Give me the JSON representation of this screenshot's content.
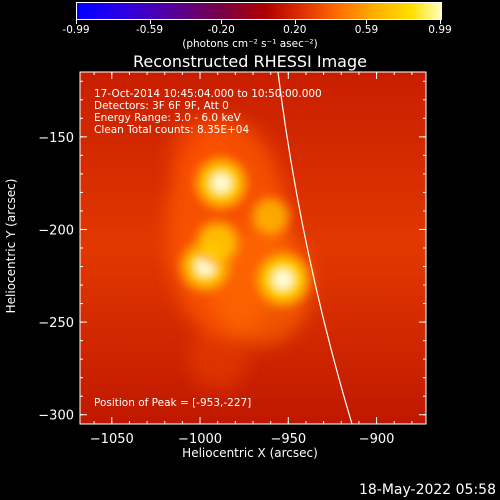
{
  "colorbar": {
    "ticks": [
      "-0.99",
      "-0.59",
      "-0.20",
      "0.20",
      "0.59",
      "0.99"
    ],
    "units": "(photons cm⁻² s⁻¹ asec⁻²)"
  },
  "chart_data": {
    "type": "heatmap",
    "title": "Reconstructed RHESSI Image",
    "xlabel": "Heliocentric X (arcsec)",
    "ylabel": "Heliocentric Y (arcsec)",
    "xlim": [
      -1068,
      -872
    ],
    "ylim": [
      -305,
      -115
    ],
    "xticks": [
      -1050,
      -1000,
      -950,
      -900
    ],
    "yticks": [
      -150,
      -200,
      -250,
      -300
    ],
    "sources": [
      {
        "x": -988,
        "y": -175,
        "intensity": 0.95
      },
      {
        "x": -997,
        "y": -220,
        "intensity": 0.9
      },
      {
        "x": -990,
        "y": -207,
        "intensity": 0.7
      },
      {
        "x": -960,
        "y": -193,
        "intensity": 0.55
      },
      {
        "x": -953,
        "y": -227,
        "intensity": 1.0
      }
    ],
    "annotations": [
      "17-Oct-2014 10:45:04.000 to 10:50:00.000",
      "Detectors: 3F 6F 9F, Att 0",
      "Energy Range: 3.0 - 6.0 keV",
      "Clean     Total counts: 8.35E+04"
    ],
    "peak_label": "Position of Peak = [-953,-227]",
    "colorbar_range": [
      -0.99,
      0.99
    ]
  },
  "timestamp": "18-May-2022 05:58"
}
